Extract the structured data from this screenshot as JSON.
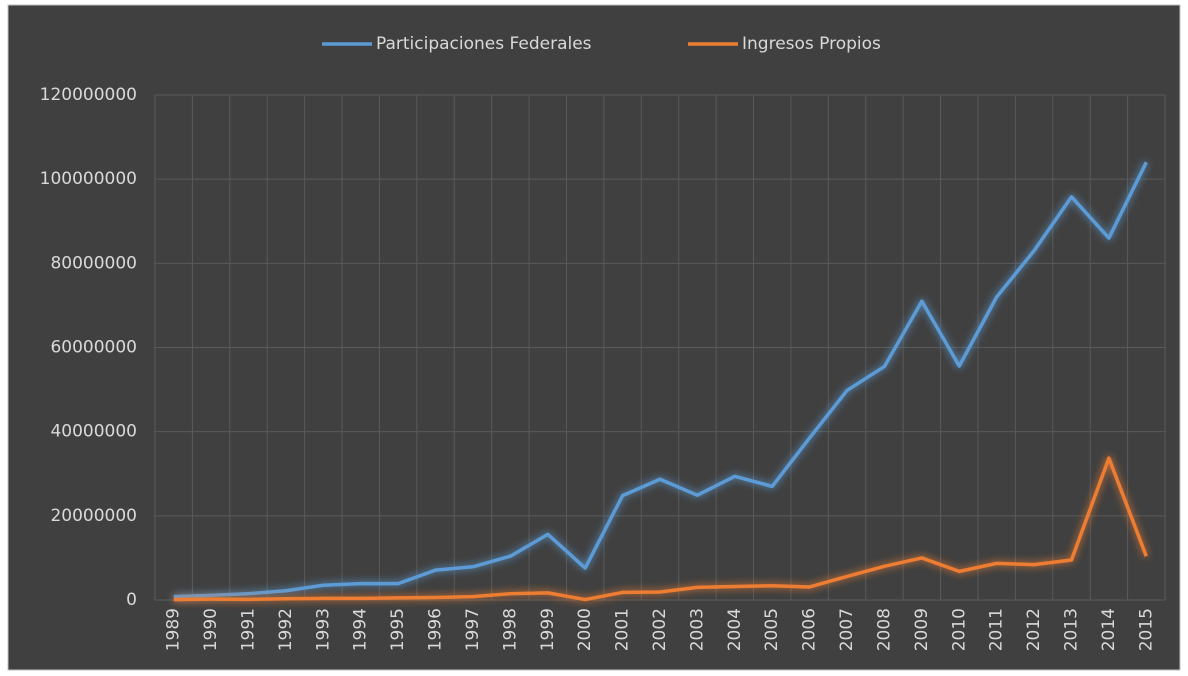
{
  "chart_data": {
    "type": "line",
    "categories": [
      "1989",
      "1990",
      "1991",
      "1992",
      "1993",
      "1994",
      "1995",
      "1996",
      "1997",
      "1998",
      "1999",
      "2000",
      "2001",
      "2002",
      "2003",
      "2004",
      "2005",
      "2006",
      "2007",
      "2008",
      "2009",
      "2010",
      "2011",
      "2012",
      "2013",
      "2014",
      "2015"
    ],
    "series": [
      {
        "name": "Participaciones Federales",
        "color": "#5b9bd5",
        "values": [
          800000,
          1100000,
          1500000,
          2200000,
          3500000,
          3900000,
          3900000,
          7100000,
          7900000,
          10400000,
          15600000,
          7600000,
          24800000,
          28700000,
          24900000,
          29400000,
          27000000,
          38500000,
          49800000,
          55500000,
          71000000,
          55600000,
          72000000,
          83000000,
          95800000,
          86000000,
          104000000
        ]
      },
      {
        "name": "Ingresos Propios",
        "color": "#ed7d31",
        "values": [
          100000,
          200000,
          150000,
          300000,
          400000,
          400000,
          500000,
          600000,
          800000,
          1500000,
          1700000,
          100000,
          1800000,
          1900000,
          3000000,
          3200000,
          3400000,
          3100000,
          5600000,
          8000000,
          10000000,
          6800000,
          8700000,
          8400000,
          9500000,
          33700000,
          10400000
        ]
      }
    ],
    "ylim": [
      0,
      120000000
    ],
    "yticks": [
      0,
      20000000,
      40000000,
      60000000,
      80000000,
      100000000,
      120000000
    ],
    "grid": true,
    "legend": "top"
  }
}
